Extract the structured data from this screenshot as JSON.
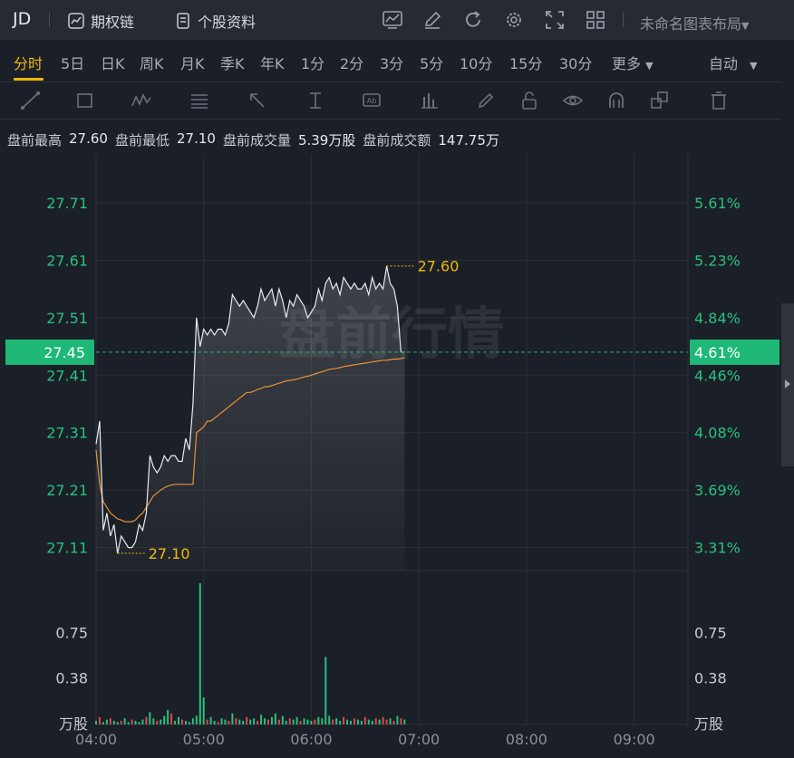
{
  "header": {
    "symbol": "JD",
    "options_chain_label": "期权链",
    "stock_profile_label": "个股资料",
    "layout_name": "未命名图表布局"
  },
  "timeframes": [
    "分时",
    "5日",
    "日K",
    "周K",
    "月K",
    "季K",
    "年K",
    "1分",
    "2分",
    "3分",
    "5分",
    "10分",
    "15分",
    "30分",
    "更多"
  ],
  "active_timeframe": "分时",
  "scale_mode": "自动",
  "toolbar_icons": [
    "trend-line-icon",
    "rectangle-icon",
    "pattern-icon",
    "fibonacci-icon",
    "arrow-icon",
    "measure-icon",
    "text-annotation-icon",
    "indicator-icon",
    "pencil-icon",
    "lock-icon",
    "eye-icon",
    "magnet-icon",
    "layers-icon",
    "trash-icon"
  ],
  "stats": {
    "high_label": "盘前最高",
    "high_value": "27.60",
    "low_label": "盘前最低",
    "low_value": "27.10",
    "volume_label": "盘前成交量",
    "volume_value": "5.39万股",
    "turnover_label": "盘前成交额",
    "turnover_value": "147.75万"
  },
  "colors": {
    "accent": "#f0b90b",
    "up": "#26c281",
    "down": "#e0474c",
    "price_line": "#e8eaee",
    "avg_line": "#e8913a",
    "current_tag": "#1fb877"
  },
  "chart_data": {
    "type": "line",
    "watermark": "盘前行情",
    "x_ticks": [
      "04:00",
      "05:00",
      "06:00",
      "07:00",
      "08:00",
      "09:00"
    ],
    "price_ticks": [
      "27.71",
      "27.61",
      "27.51",
      "27.41",
      "27.31",
      "27.21",
      "27.11"
    ],
    "pct_ticks": [
      "5.61%",
      "5.23%",
      "4.84%",
      "4.46%",
      "4.08%",
      "3.69%",
      "3.31%"
    ],
    "price_range": [
      27.07,
      27.795
    ],
    "current_price": "27.45",
    "current_pct": "4.61%",
    "high_marker": "27.60",
    "low_marker": "27.10",
    "volume_ticks": [
      "0.75",
      "0.38"
    ],
    "volume_unit": "万股",
    "volume_range": [
      0,
      1.15
    ],
    "series": [
      {
        "x": [
          "04:00",
          "04:02",
          "04:04",
          "04:06",
          "04:08",
          "04:10",
          "04:12",
          "04:14",
          "04:16",
          "04:18",
          "04:20",
          "04:22",
          "04:24",
          "04:26",
          "04:28",
          "04:30",
          "04:32",
          "04:34",
          "04:36",
          "04:38",
          "04:40",
          "04:42",
          "04:44",
          "04:46",
          "04:48",
          "04:50",
          "04:52",
          "04:54",
          "04:56",
          "04:58",
          "05:00",
          "05:02",
          "05:04",
          "05:06",
          "05:08",
          "05:10",
          "05:12",
          "05:14",
          "05:16",
          "05:18",
          "05:20",
          "05:22",
          "05:24",
          "05:26",
          "05:28",
          "05:30",
          "05:32",
          "05:34",
          "05:36",
          "05:38",
          "05:40",
          "05:42",
          "05:44",
          "05:46",
          "05:48",
          "05:50",
          "05:52",
          "05:54",
          "05:56",
          "05:58",
          "06:00",
          "06:02",
          "06:04",
          "06:06",
          "06:08",
          "06:10",
          "06:12",
          "06:14",
          "06:16",
          "06:18",
          "06:20",
          "06:22",
          "06:24",
          "06:26",
          "06:28",
          "06:30",
          "06:32",
          "06:34",
          "06:36",
          "06:38",
          "06:40",
          "06:42",
          "06:44",
          "06:46",
          "06:48",
          "06:50",
          "06:52"
        ],
        "price": [
          27.29,
          27.33,
          27.14,
          27.17,
          27.13,
          27.15,
          27.1,
          27.13,
          27.12,
          27.11,
          27.11,
          27.12,
          27.15,
          27.14,
          27.17,
          27.27,
          27.25,
          27.24,
          27.25,
          27.27,
          27.26,
          27.27,
          27.27,
          27.26,
          27.26,
          27.3,
          27.28,
          27.36,
          27.51,
          27.46,
          27.49,
          27.48,
          27.49,
          27.48,
          27.49,
          27.49,
          27.48,
          27.5,
          27.55,
          27.54,
          27.53,
          27.54,
          27.53,
          27.52,
          27.51,
          27.53,
          27.56,
          27.54,
          27.55,
          27.56,
          27.53,
          27.56,
          27.54,
          27.51,
          27.54,
          27.53,
          27.55,
          27.54,
          27.53,
          27.51,
          27.52,
          27.53,
          27.56,
          27.54,
          27.57,
          27.58,
          27.56,
          27.57,
          27.55,
          27.58,
          27.57,
          27.56,
          27.57,
          27.56,
          27.56,
          27.57,
          27.55,
          27.58,
          27.56,
          27.57,
          27.56,
          27.6,
          27.57,
          27.56,
          27.53,
          27.45,
          27.45
        ],
        "avg": [
          27.28,
          27.22,
          27.19,
          27.18,
          27.17,
          27.165,
          27.16,
          27.158,
          27.155,
          27.155,
          27.155,
          27.158,
          27.165,
          27.17,
          27.18,
          27.19,
          27.2,
          27.205,
          27.21,
          27.214,
          27.217,
          27.219,
          27.22,
          27.22,
          27.22,
          27.22,
          27.22,
          27.22,
          27.31,
          27.315,
          27.32,
          27.33,
          27.33,
          27.335,
          27.34,
          27.345,
          27.35,
          27.355,
          27.36,
          27.365,
          27.37,
          27.375,
          27.38,
          27.38,
          27.382,
          27.385,
          27.387,
          27.39,
          27.39,
          27.392,
          27.394,
          27.396,
          27.398,
          27.4,
          27.401,
          27.402,
          27.403,
          27.405,
          27.407,
          27.408,
          27.41,
          27.412,
          27.414,
          27.416,
          27.418,
          27.42,
          27.421,
          27.422,
          27.423,
          27.425,
          27.426,
          27.427,
          27.428,
          27.429,
          27.43,
          27.431,
          27.432,
          27.433,
          27.434,
          27.435,
          27.436,
          27.436,
          27.437,
          27.438,
          27.438,
          27.439,
          27.44
        ]
      }
    ],
    "volume": [
      0.03,
      0.06,
      0.02,
      0.04,
      0.05,
      0.03,
      0.02,
      0.03,
      0.05,
      0.02,
      0.04,
      0.03,
      0.02,
      0.04,
      0.06,
      0.1,
      0.05,
      0.03,
      0.04,
      0.07,
      0.12,
      0.09,
      0.03,
      0.06,
      0.04,
      0.03,
      0.02,
      0.05,
      0.07,
      1.15,
      0.22,
      0.04,
      0.06,
      0.03,
      0.02,
      0.05,
      0.04,
      0.03,
      0.09,
      0.05,
      0.04,
      0.03,
      0.06,
      0.04,
      0.05,
      0.03,
      0.08,
      0.05,
      0.04,
      0.06,
      0.09,
      0.04,
      0.07,
      0.03,
      0.05,
      0.04,
      0.06,
      0.03,
      0.05,
      0.04,
      0.03,
      0.04,
      0.06,
      0.05,
      0.55,
      0.07,
      0.04,
      0.05,
      0.03,
      0.06,
      0.04,
      0.03,
      0.05,
      0.04,
      0.03,
      0.06,
      0.04,
      0.03,
      0.05,
      0.04,
      0.06,
      0.04,
      0.05,
      0.03,
      0.07,
      0.05,
      0.04
    ],
    "volume_dir": [
      1,
      -1,
      1,
      1,
      -1,
      1,
      1,
      -1,
      1,
      1,
      -1,
      1,
      1,
      1,
      -1,
      1,
      1,
      -1,
      1,
      1,
      1,
      -1,
      1,
      1,
      -1,
      1,
      1,
      1,
      1,
      1,
      1,
      -1,
      1,
      1,
      -1,
      1,
      1,
      -1,
      1,
      -1,
      1,
      1,
      -1,
      1,
      1,
      -1,
      1,
      1,
      -1,
      1,
      1,
      -1,
      1,
      1,
      -1,
      1,
      1,
      -1,
      1,
      1,
      1,
      -1,
      1,
      1,
      1,
      1,
      -1,
      1,
      1,
      -1,
      1,
      1,
      -1,
      1,
      1,
      -1,
      1,
      1,
      -1,
      1,
      -1,
      -1,
      1,
      -1,
      1,
      -1,
      1
    ]
  }
}
